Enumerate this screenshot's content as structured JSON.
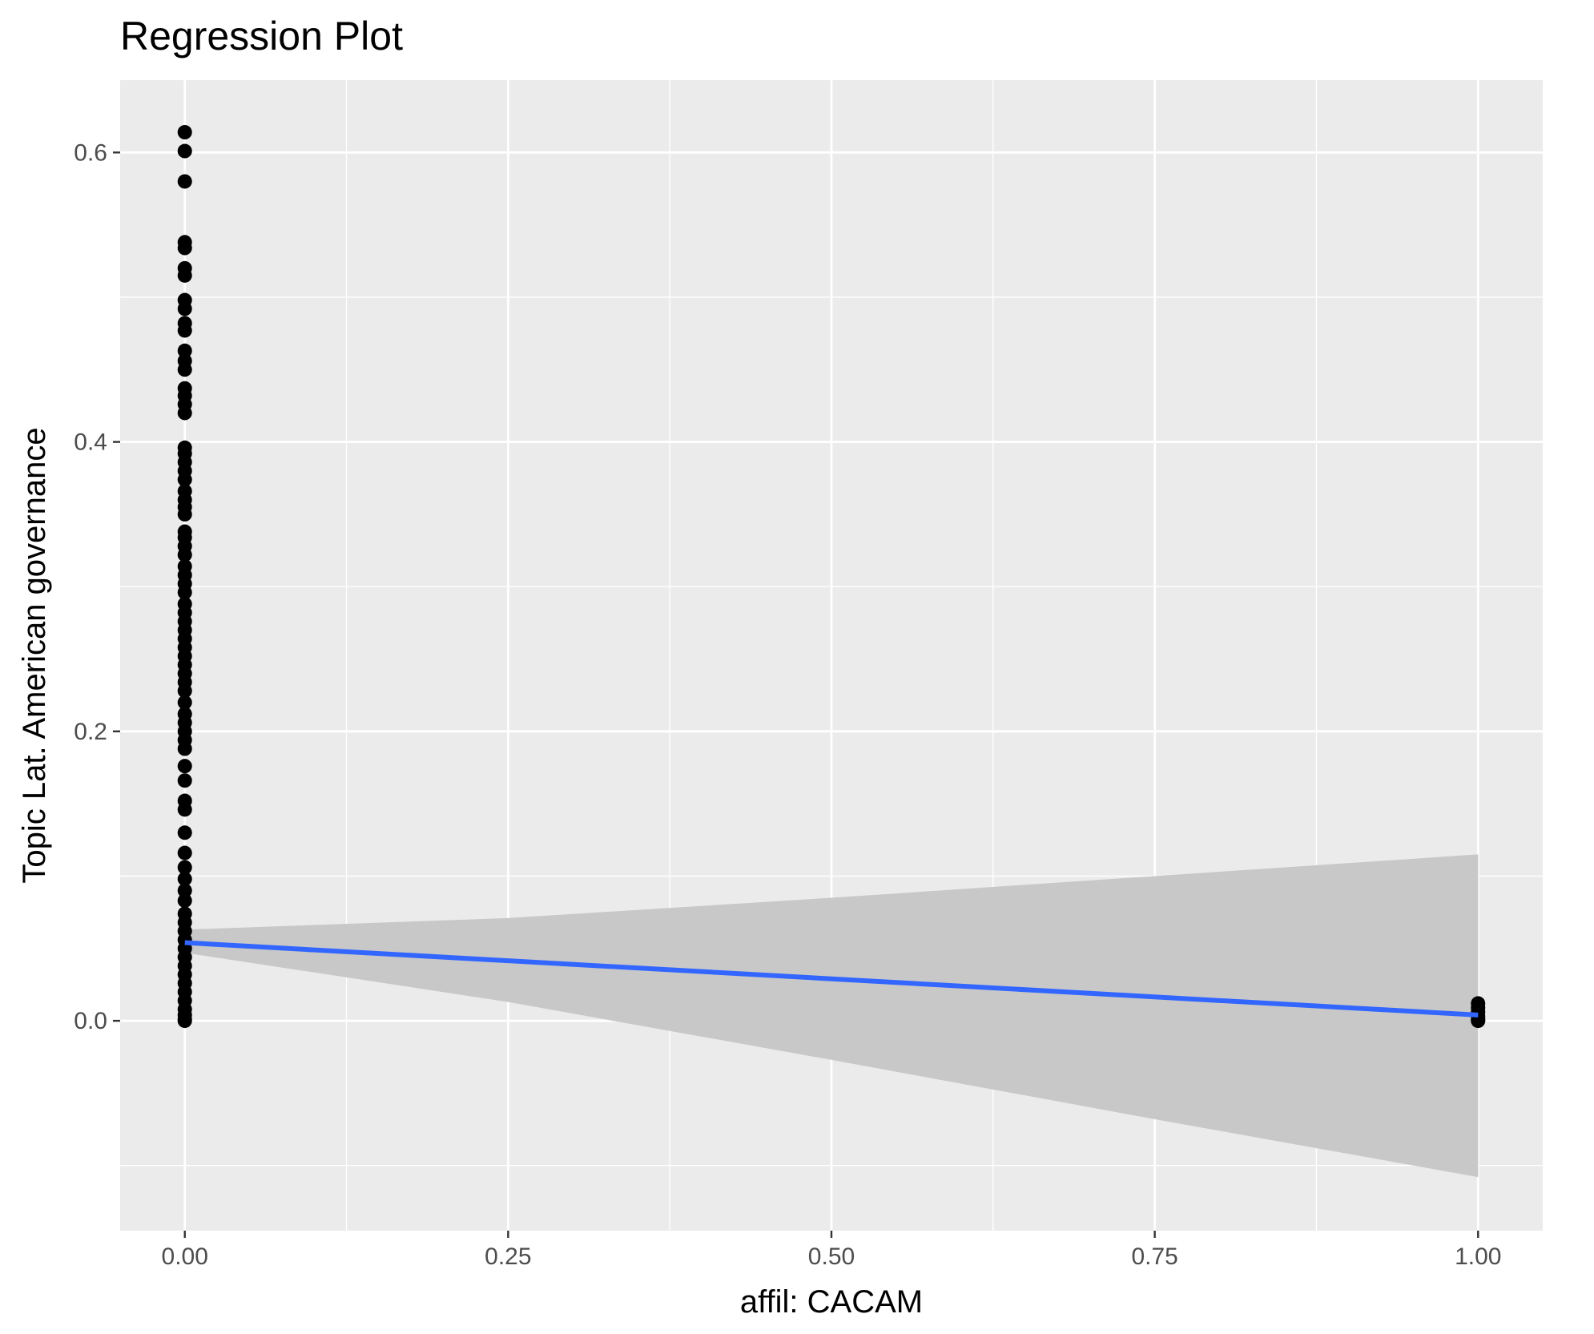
{
  "chart_data": {
    "type": "scatter",
    "title": "Regression Plot",
    "xlabel": "affil: CACAM",
    "ylabel": "Topic Lat. American governance",
    "xlim": [
      -0.05,
      1.05
    ],
    "ylim": [
      -0.145,
      0.65
    ],
    "x_ticks": [
      0,
      0.25,
      0.5,
      0.75,
      1
    ],
    "x_tick_labels": [
      "0.00",
      "0.25",
      "0.50",
      "0.75",
      "1.00"
    ],
    "y_ticks": [
      0,
      0.2,
      0.4,
      0.6
    ],
    "y_tick_labels": [
      "0.0",
      "0.2",
      "0.4",
      "0.6"
    ],
    "x_minor_ticks": [
      0.125,
      0.375,
      0.625,
      0.875
    ],
    "y_minor_ticks": [
      -0.1,
      0.1,
      0.3,
      0.5
    ],
    "grid": true,
    "colors": {
      "panel_background": "#ebebeb",
      "grid": "#ffffff",
      "points": "#000000",
      "fit_line": "#3366ff",
      "confidence_band": "#c8c8c8"
    },
    "points": {
      "x0_y": [
        0.614,
        0.601,
        0.58,
        0.538,
        0.534,
        0.52,
        0.515,
        0.498,
        0.492,
        0.482,
        0.477,
        0.463,
        0.456,
        0.45,
        0.437,
        0.432,
        0.426,
        0.42,
        0.396,
        0.392,
        0.386,
        0.38,
        0.374,
        0.366,
        0.36,
        0.355,
        0.35,
        0.338,
        0.334,
        0.328,
        0.322,
        0.314,
        0.308,
        0.302,
        0.296,
        0.288,
        0.282,
        0.276,
        0.27,
        0.264,
        0.258,
        0.252,
        0.246,
        0.24,
        0.234,
        0.228,
        0.22,
        0.212,
        0.206,
        0.2,
        0.194,
        0.188,
        0.176,
        0.166,
        0.152,
        0.146,
        0.13,
        0.116,
        0.106,
        0.098,
        0.09,
        0.083,
        0.074,
        0.068,
        0.062,
        0.056,
        0.05,
        0.044,
        0.038,
        0.032,
        0.026,
        0.02,
        0.014,
        0.008,
        0.004,
        0.001,
        0.0
      ],
      "x1_y": [
        0.012,
        0.009,
        0.006,
        0.003,
        0.001,
        0.0
      ]
    },
    "fit": {
      "x": [
        0,
        1
      ],
      "y": [
        0.054,
        0.004
      ]
    },
    "confidence_band": {
      "x": [
        0,
        0.25,
        0.5,
        0.75,
        1
      ],
      "upper": [
        0.063,
        0.071,
        0.085,
        0.1,
        0.115
      ],
      "lower": [
        0.047,
        0.013,
        -0.027,
        -0.068,
        -0.108
      ]
    }
  }
}
